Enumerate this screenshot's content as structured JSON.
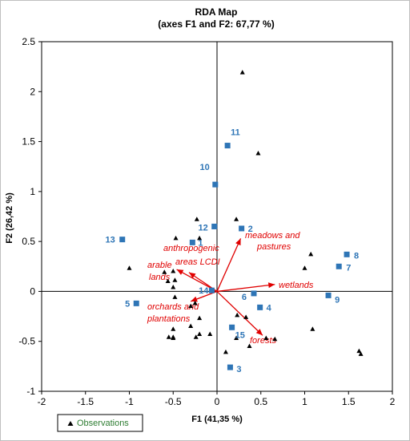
{
  "chart_data": {
    "type": "scatter",
    "title_line1": "RDA Map",
    "title_line2": "(axes F1 and F2: 67,77 %)",
    "xlabel": "F1 (41,35 %)",
    "ylabel": "F2 (26,42 %)",
    "xlim": [
      -2,
      2
    ],
    "ylim": [
      -1,
      2.5
    ],
    "xticks": [
      "-2",
      "-1.5",
      "-1",
      "-0.5",
      "0",
      "0.5",
      "1",
      "1.5",
      "2"
    ],
    "yticks": [
      "-1",
      "-0.5",
      "0",
      "0.5",
      "1",
      "1.5",
      "2",
      "2.5"
    ],
    "legend": {
      "label": "Observations",
      "position": "bottom-left"
    },
    "colors": {
      "variables": "#e00000",
      "observations": "#2e75b6",
      "points": "#000000",
      "legend_text": "#2e7d32"
    },
    "variables": [
      {
        "name": "meadows and pastures",
        "x": 0.27,
        "y": 0.53
      },
      {
        "name": "anthropogenic areas LCDI",
        "x": -0.32,
        "y": 0.19
      },
      {
        "name": "arable lands",
        "x": -0.46,
        "y": 0.22
      },
      {
        "name": "wetlands",
        "x": 0.66,
        "y": 0.07
      },
      {
        "name": "orchards and plantations",
        "x": -0.3,
        "y": -0.1
      },
      {
        "name": "forests",
        "x": 0.52,
        "y": -0.44
      }
    ],
    "objects": [
      {
        "label": "1",
        "x": -0.28,
        "y": 0.49
      },
      {
        "label": "2",
        "x": 0.28,
        "y": 0.63
      },
      {
        "label": "3",
        "x": 0.15,
        "y": -0.76
      },
      {
        "label": "4",
        "x": 0.49,
        "y": -0.16
      },
      {
        "label": "5",
        "x": -0.92,
        "y": -0.12
      },
      {
        "label": "6",
        "x": 0.42,
        "y": -0.02
      },
      {
        "label": "7",
        "x": 1.39,
        "y": 0.25
      },
      {
        "label": "8",
        "x": 1.48,
        "y": 0.37
      },
      {
        "label": "9",
        "x": 1.27,
        "y": -0.04
      },
      {
        "label": "10",
        "x": -0.02,
        "y": 1.07
      },
      {
        "label": "11",
        "x": 0.12,
        "y": 1.46
      },
      {
        "label": "12",
        "x": -0.03,
        "y": 0.65
      },
      {
        "label": "13",
        "x": -1.08,
        "y": 0.52
      },
      {
        "label": "14",
        "x": -0.06,
        "y": 0.01
      },
      {
        "label": "15",
        "x": 0.17,
        "y": -0.36
      }
    ],
    "observations": [
      {
        "x": 0.29,
        "y": 2.19
      },
      {
        "x": 0.47,
        "y": 1.38
      },
      {
        "x": -0.23,
        "y": 0.72
      },
      {
        "x": 0.22,
        "y": 0.72
      },
      {
        "x": -0.47,
        "y": 0.53
      },
      {
        "x": -0.2,
        "y": 0.53
      },
      {
        "x": -1.0,
        "y": 0.23
      },
      {
        "x": -0.5,
        "y": 0.2
      },
      {
        "x": -0.6,
        "y": 0.19
      },
      {
        "x": -0.48,
        "y": 0.11
      },
      {
        "x": -0.56,
        "y": 0.1
      },
      {
        "x": -0.5,
        "y": 0.04
      },
      {
        "x": -0.48,
        "y": -0.06
      },
      {
        "x": -0.3,
        "y": -0.15
      },
      {
        "x": -0.25,
        "y": -0.12
      },
      {
        "x": -0.2,
        "y": -0.27
      },
      {
        "x": -0.3,
        "y": -0.35
      },
      {
        "x": -0.5,
        "y": -0.38
      },
      {
        "x": -0.55,
        "y": -0.46
      },
      {
        "x": -0.5,
        "y": -0.46
      },
      {
        "x": -0.5,
        "y": -0.47
      },
      {
        "x": -0.24,
        "y": -0.46
      },
      {
        "x": -0.2,
        "y": -0.43
      },
      {
        "x": -0.08,
        "y": -0.43
      },
      {
        "x": 0.23,
        "y": -0.24
      },
      {
        "x": 0.33,
        "y": -0.26
      },
      {
        "x": 0.22,
        "y": -0.47
      },
      {
        "x": 0.1,
        "y": -0.61
      },
      {
        "x": 0.37,
        "y": -0.55
      },
      {
        "x": 0.66,
        "y": -0.48
      },
      {
        "x": 0.56,
        "y": -0.47
      },
      {
        "x": 1.0,
        "y": 0.23
      },
      {
        "x": 1.07,
        "y": 0.37
      },
      {
        "x": 1.09,
        "y": -0.38
      },
      {
        "x": 1.62,
        "y": -0.6
      },
      {
        "x": 1.64,
        "y": -0.63
      }
    ]
  }
}
